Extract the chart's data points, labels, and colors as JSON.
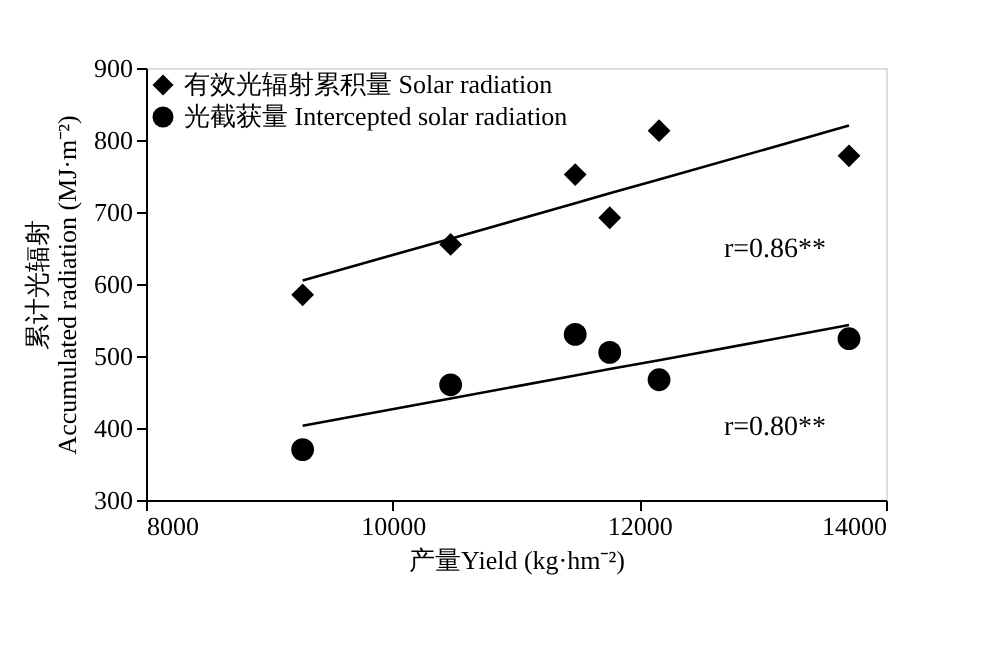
{
  "chart_data": {
    "type": "scatter",
    "xlabel": "产量Yield (kg·hm⁻²)",
    "ylabel": "累计光辐射\nAccumulated radiation (MJ·m⁻²)",
    "x": [
      9270,
      10470,
      11480,
      11760,
      12160,
      13700
    ],
    "series": [
      {
        "name": "有效光辐射累积量 Solar radiation",
        "color": "#000000",
        "marker": "diamond",
        "values": [
          585,
          655,
          752,
          692,
          813,
          778
        ]
      },
      {
        "name": "光截获量 Intercepted solar radiation",
        "color": "#000000",
        "marker": "circle",
        "values": [
          370,
          460,
          530,
          505,
          467,
          524
        ]
      },
      {
        "type": "line",
        "color": "#000000",
        "values": [
          605,
          663,
          712,
          726,
          745,
          820
        ]
      },
      {
        "type": "line",
        "color": "#000000",
        "values": [
          403,
          441,
          473,
          482,
          494,
          543
        ]
      }
    ],
    "annotations": [
      "r=0.86**",
      "r=0.80**"
    ],
    "xlim": [
      8000,
      14000
    ],
    "xticks": [
      8000,
      10000,
      12000,
      14000
    ],
    "ylim": [
      300,
      900
    ],
    "yticks": [
      300,
      400,
      500,
      600,
      700,
      800,
      900
    ],
    "grid": false,
    "legend": "top left"
  }
}
